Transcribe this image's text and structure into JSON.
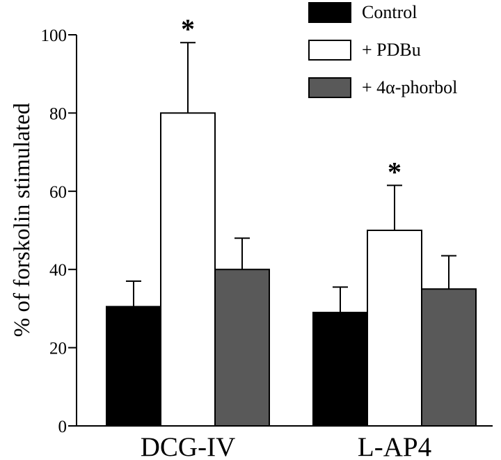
{
  "chart_data": {
    "type": "bar",
    "title": "",
    "xlabel": "",
    "ylabel": "% of forskolin stimulated",
    "ylim": [
      0,
      100
    ],
    "yticks": [
      0,
      20,
      40,
      60,
      80,
      100
    ],
    "grid": false,
    "legend_position": "top-right",
    "categories": [
      "DCG-IV",
      "L-AP4"
    ],
    "series": [
      {
        "name": "Control",
        "values": [
          30.5,
          29
        ],
        "errors": [
          6.5,
          6.5
        ],
        "color": "#000000",
        "pattern": "solid"
      },
      {
        "name": "+ PDBu",
        "values": [
          80,
          50
        ],
        "errors": [
          18,
          11.5
        ],
        "color": "#ffffff",
        "pattern": "open"
      },
      {
        "name": "+ 4α-phorbol",
        "values": [
          40,
          35
        ],
        "errors": [
          8,
          8.5
        ],
        "color": "#595959",
        "pattern": "grey"
      }
    ],
    "annotations": [
      {
        "text": "*",
        "category": 0,
        "series": 1
      },
      {
        "text": "*",
        "category": 1,
        "series": 1
      }
    ]
  }
}
